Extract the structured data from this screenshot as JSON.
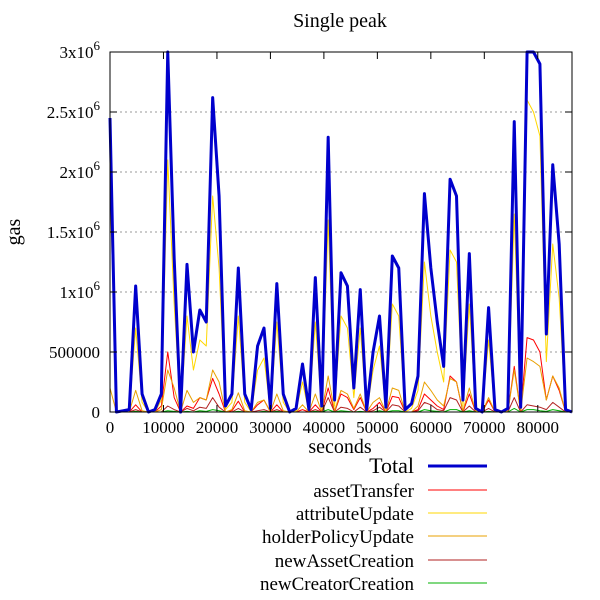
{
  "chart_data": {
    "type": "line",
    "title": "Single peak",
    "xlabel": "seconds",
    "ylabel": "gas",
    "xlim": [
      0,
      86400
    ],
    "ylim": [
      0,
      3000000
    ],
    "grid": "horizontal dotted",
    "legend_position": "bottom-right, below plot",
    "x_ticks": [
      {
        "value": 0,
        "label": "0"
      },
      {
        "value": 10000,
        "label": "10000"
      },
      {
        "value": 20000,
        "label": "20000"
      },
      {
        "value": 30000,
        "label": "30000"
      },
      {
        "value": 40000,
        "label": "40000"
      },
      {
        "value": 50000,
        "label": "50000"
      },
      {
        "value": 60000,
        "label": "60000"
      },
      {
        "value": 70000,
        "label": "70000"
      },
      {
        "value": 80000,
        "label": "80000"
      }
    ],
    "y_ticks": [
      {
        "value": 0,
        "label": "0",
        "mantissa": "0",
        "exponent": ""
      },
      {
        "value": 500000,
        "label": "500000",
        "mantissa": "500000",
        "exponent": ""
      },
      {
        "value": 1000000,
        "label": "1x10^6",
        "mantissa": "1x10",
        "exponent": "6"
      },
      {
        "value": 1500000,
        "label": "1.5x10^6",
        "mantissa": "1.5x10",
        "exponent": "6"
      },
      {
        "value": 2000000,
        "label": "2x10^6",
        "mantissa": "2x10",
        "exponent": "6"
      },
      {
        "value": 2500000,
        "label": "2.5x10^6",
        "mantissa": "2.5x10",
        "exponent": "6"
      },
      {
        "value": 3000000,
        "label": "3x10^6",
        "mantissa": "3x10",
        "exponent": "6"
      }
    ],
    "x": [
      0,
      1200,
      2400,
      3600,
      4800,
      6000,
      7200,
      8400,
      9600,
      10800,
      12000,
      13200,
      14400,
      15600,
      16800,
      18000,
      19200,
      20400,
      21600,
      22800,
      24000,
      25200,
      26400,
      27600,
      28800,
      30000,
      31200,
      32400,
      33600,
      34800,
      36000,
      37200,
      38400,
      39600,
      40800,
      42000,
      43200,
      44400,
      45600,
      46800,
      48000,
      49200,
      50400,
      51600,
      52800,
      54000,
      55200,
      56400,
      57600,
      58800,
      60000,
      61200,
      62400,
      63600,
      64800,
      66000,
      67200,
      68400,
      69600,
      70800,
      72000,
      73200,
      74400,
      75600,
      76800,
      78000,
      79200,
      80400,
      81600,
      82800,
      84000,
      85200,
      86400
    ],
    "series": [
      {
        "name": "Total",
        "color": "#0000cc",
        "width": 3,
        "values": [
          2450000,
          0,
          10000,
          20000,
          1050000,
          150000,
          0,
          20000,
          150000,
          3000000,
          1280000,
          0,
          1230000,
          500000,
          850000,
          750000,
          2620000,
          1800000,
          50000,
          150000,
          1200000,
          150000,
          20000,
          550000,
          700000,
          30000,
          1070000,
          150000,
          0,
          30000,
          400000,
          20000,
          1120000,
          50000,
          2290000,
          100000,
          1160000,
          1050000,
          200000,
          1020000,
          20000,
          500000,
          800000,
          40000,
          1300000,
          1200000,
          20000,
          70000,
          300000,
          1820000,
          1200000,
          750000,
          380000,
          1940000,
          1800000,
          100000,
          1320000,
          30000,
          0,
          870000,
          20000,
          0,
          30000,
          2420000,
          40000,
          3000000,
          3000000,
          2900000,
          650000,
          2060000,
          1400000,
          20000,
          0
        ]
      },
      {
        "name": "assetTransfer",
        "color": "#ff0000",
        "width": 1,
        "values": [
          0,
          0,
          0,
          0,
          60000,
          0,
          0,
          0,
          50000,
          500000,
          120000,
          0,
          50000,
          30000,
          120000,
          100000,
          280000,
          150000,
          0,
          10000,
          90000,
          0,
          0,
          60000,
          100000,
          0,
          60000,
          0,
          0,
          0,
          20000,
          0,
          60000,
          0,
          200000,
          0,
          150000,
          120000,
          20000,
          120000,
          0,
          30000,
          80000,
          0,
          130000,
          120000,
          0,
          0,
          20000,
          150000,
          100000,
          50000,
          20000,
          300000,
          250000,
          0,
          150000,
          0,
          0,
          100000,
          0,
          0,
          0,
          380000,
          0,
          620000,
          600000,
          500000,
          100000,
          300000,
          180000,
          0,
          0
        ]
      },
      {
        "name": "attributeUpdate",
        "color": "#ffd700",
        "width": 1,
        "values": [
          1900000,
          0,
          0,
          0,
          700000,
          80000,
          0,
          0,
          100000,
          2100000,
          900000,
          0,
          800000,
          350000,
          600000,
          550000,
          1800000,
          1200000,
          20000,
          80000,
          800000,
          80000,
          0,
          350000,
          450000,
          10000,
          750000,
          80000,
          0,
          10000,
          250000,
          0,
          750000,
          20000,
          1600000,
          50000,
          800000,
          700000,
          120000,
          700000,
          0,
          350000,
          550000,
          20000,
          900000,
          800000,
          0,
          30000,
          180000,
          1250000,
          800000,
          500000,
          250000,
          1350000,
          1250000,
          50000,
          900000,
          10000,
          0,
          600000,
          0,
          0,
          10000,
          1650000,
          20000,
          2600000,
          2500000,
          2300000,
          420000,
          1400000,
          950000,
          0,
          0
        ]
      },
      {
        "name": "holderPolicyUpdate",
        "color": "#e8a000",
        "width": 1,
        "values": [
          200000,
          0,
          0,
          0,
          180000,
          10000,
          0,
          0,
          20000,
          350000,
          200000,
          0,
          180000,
          80000,
          120000,
          100000,
          350000,
          250000,
          0,
          20000,
          160000,
          10000,
          0,
          80000,
          100000,
          0,
          150000,
          10000,
          0,
          0,
          60000,
          0,
          150000,
          0,
          300000,
          10000,
          180000,
          150000,
          30000,
          150000,
          0,
          80000,
          120000,
          0,
          200000,
          180000,
          0,
          0,
          50000,
          250000,
          180000,
          100000,
          50000,
          280000,
          250000,
          10000,
          200000,
          0,
          0,
          120000,
          0,
          0,
          0,
          350000,
          0,
          450000,
          420000,
          380000,
          100000,
          300000,
          200000,
          0,
          0
        ]
      },
      {
        "name": "newAssetCreation",
        "color": "#b22222",
        "width": 1,
        "values": [
          0,
          0,
          0,
          0,
          20000,
          0,
          0,
          0,
          0,
          50000,
          20000,
          0,
          30000,
          10000,
          40000,
          30000,
          120000,
          40000,
          0,
          0,
          30000,
          0,
          0,
          10000,
          20000,
          0,
          20000,
          0,
          0,
          0,
          0,
          0,
          20000,
          0,
          120000,
          0,
          40000,
          30000,
          0,
          40000,
          0,
          10000,
          40000,
          0,
          60000,
          50000,
          0,
          0,
          10000,
          80000,
          60000,
          20000,
          10000,
          120000,
          100000,
          0,
          50000,
          0,
          0,
          30000,
          0,
          0,
          0,
          120000,
          0,
          60000,
          50000,
          40000,
          20000,
          80000,
          40000,
          0,
          0
        ]
      },
      {
        "name": "newCreatorCreation",
        "color": "#00b000",
        "width": 1,
        "values": [
          0,
          0,
          0,
          0,
          5000,
          0,
          0,
          0,
          0,
          10000,
          5000,
          0,
          5000,
          0,
          10000,
          5000,
          20000,
          10000,
          0,
          0,
          5000,
          0,
          0,
          0,
          5000,
          0,
          5000,
          0,
          0,
          0,
          0,
          0,
          5000,
          0,
          20000,
          0,
          10000,
          5000,
          0,
          5000,
          0,
          0,
          10000,
          0,
          10000,
          10000,
          0,
          0,
          0,
          20000,
          10000,
          5000,
          0,
          20000,
          20000,
          0,
          10000,
          0,
          0,
          5000,
          0,
          0,
          0,
          30000,
          0,
          20000,
          20000,
          10000,
          5000,
          20000,
          10000,
          0,
          0
        ]
      }
    ]
  }
}
